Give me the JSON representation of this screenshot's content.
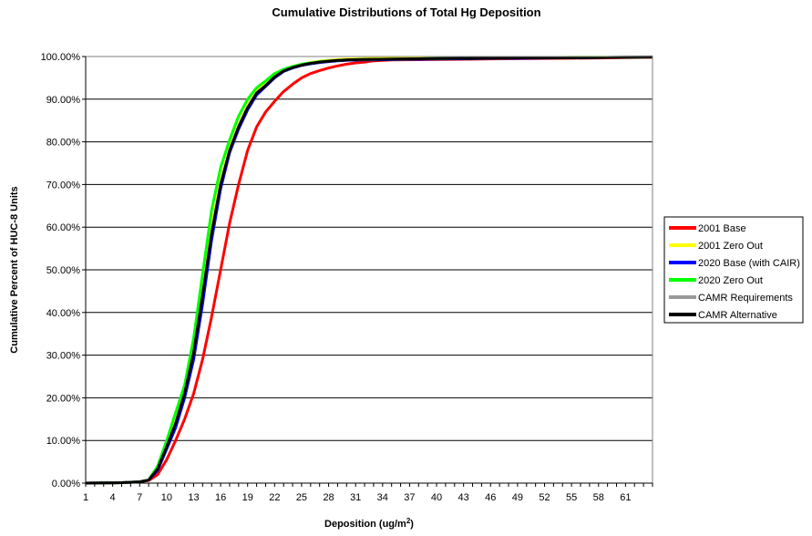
{
  "chart_data": {
    "type": "line",
    "title": "Cumulative Distributions of Total Hg Deposition",
    "xlabel_main": "Deposition (ug/m",
    "xlabel_sup": "2",
    "xlabel_end": ")",
    "ylabel": "Cumulative Percent of HUC-8 Units",
    "x_tick_labels": [
      "1",
      "4",
      "7",
      "10",
      "13",
      "16",
      "19",
      "22",
      "25",
      "28",
      "31",
      "34",
      "37",
      "40",
      "43",
      "46",
      "49",
      "52",
      "55",
      "58",
      "61"
    ],
    "x_tick_values": [
      1,
      4,
      7,
      10,
      13,
      16,
      19,
      22,
      25,
      28,
      31,
      34,
      37,
      40,
      43,
      46,
      49,
      52,
      55,
      58,
      61
    ],
    "xlim": [
      1,
      64
    ],
    "y_ticks": [
      0,
      10,
      20,
      30,
      40,
      50,
      60,
      70,
      80,
      90,
      100
    ],
    "y_tick_labels": [
      "0.00%",
      "10.00%",
      "20.00%",
      "30.00%",
      "40.00%",
      "50.00%",
      "60.00%",
      "70.00%",
      "80.00%",
      "90.00%",
      "100.00%"
    ],
    "ylim": [
      0,
      100
    ],
    "grid": "horizontal",
    "legend_position": "right",
    "series": [
      {
        "name": "2001 Base",
        "color": "#ff0000",
        "points": [
          [
            1,
            0
          ],
          [
            5,
            0.1
          ],
          [
            7,
            0.3
          ],
          [
            8,
            0.6
          ],
          [
            9,
            2
          ],
          [
            10,
            5.5
          ],
          [
            11,
            10
          ],
          [
            12,
            15
          ],
          [
            13,
            21
          ],
          [
            14,
            29
          ],
          [
            15,
            39
          ],
          [
            16,
            50
          ],
          [
            17,
            61
          ],
          [
            18,
            70
          ],
          [
            19,
            78
          ],
          [
            20,
            83.5
          ],
          [
            21,
            87
          ],
          [
            22,
            89.5
          ],
          [
            23,
            91.8
          ],
          [
            24,
            93.5
          ],
          [
            25,
            95
          ],
          [
            26,
            96
          ],
          [
            27,
            96.7
          ],
          [
            28,
            97.3
          ],
          [
            29,
            97.8
          ],
          [
            30,
            98.2
          ],
          [
            31,
            98.5
          ],
          [
            32,
            98.7
          ],
          [
            33,
            99
          ],
          [
            34,
            99.1
          ],
          [
            35,
            99.2
          ],
          [
            40,
            99.3
          ],
          [
            45,
            99.4
          ],
          [
            50,
            99.5
          ],
          [
            55,
            99.6
          ],
          [
            60,
            99.7
          ],
          [
            64,
            99.8
          ]
        ]
      },
      {
        "name": "2001 Zero Out",
        "color": "#ffff00",
        "points": [
          [
            1,
            0
          ],
          [
            5,
            0.1
          ],
          [
            7,
            0.3
          ],
          [
            8,
            0.7
          ],
          [
            9,
            3.5
          ],
          [
            10,
            9
          ],
          [
            11,
            15
          ],
          [
            12,
            22
          ],
          [
            13,
            32
          ],
          [
            14,
            46
          ],
          [
            15,
            60
          ],
          [
            16,
            71
          ],
          [
            17,
            78.5
          ],
          [
            18,
            84
          ],
          [
            19,
            88.5
          ],
          [
            20,
            91.8
          ],
          [
            21,
            93.5
          ],
          [
            22,
            95.5
          ],
          [
            23,
            96.8
          ],
          [
            24,
            97.6
          ],
          [
            25,
            98.2
          ],
          [
            26,
            98.6
          ],
          [
            27,
            98.9
          ],
          [
            28,
            99.1
          ],
          [
            29,
            99.3
          ],
          [
            30,
            99.4
          ],
          [
            32,
            99.5
          ],
          [
            36,
            99.6
          ],
          [
            40,
            99.6
          ],
          [
            45,
            99.7
          ],
          [
            50,
            99.7
          ],
          [
            55,
            99.8
          ],
          [
            60,
            99.8
          ],
          [
            64,
            99.9
          ]
        ]
      },
      {
        "name": "2020 Base (with CAIR)",
        "color": "#0000ff",
        "points": [
          [
            1,
            0
          ],
          [
            5,
            0.1
          ],
          [
            7,
            0.3
          ],
          [
            8,
            0.7
          ],
          [
            9,
            3
          ],
          [
            10,
            8
          ],
          [
            11,
            13
          ],
          [
            12,
            20
          ],
          [
            13,
            29
          ],
          [
            14,
            42
          ],
          [
            15,
            57
          ],
          [
            16,
            69
          ],
          [
            17,
            77.5
          ],
          [
            18,
            83
          ],
          [
            19,
            87.5
          ],
          [
            20,
            91
          ],
          [
            21,
            93
          ],
          [
            22,
            95
          ],
          [
            23,
            96.5
          ],
          [
            24,
            97.3
          ],
          [
            25,
            97.9
          ],
          [
            26,
            98.3
          ],
          [
            27,
            98.6
          ],
          [
            28,
            98.8
          ],
          [
            29,
            99
          ],
          [
            30,
            99.1
          ],
          [
            32,
            99.2
          ],
          [
            36,
            99.3
          ],
          [
            40,
            99.4
          ],
          [
            45,
            99.5
          ],
          [
            50,
            99.6
          ],
          [
            55,
            99.7
          ],
          [
            60,
            99.8
          ],
          [
            64,
            99.9
          ]
        ]
      },
      {
        "name": "2020 Zero Out",
        "color": "#00ff00",
        "points": [
          [
            1,
            0
          ],
          [
            5,
            0.1
          ],
          [
            7,
            0.3
          ],
          [
            8,
            0.8
          ],
          [
            9,
            4
          ],
          [
            10,
            10
          ],
          [
            11,
            16.5
          ],
          [
            12,
            23
          ],
          [
            13,
            34
          ],
          [
            14,
            49
          ],
          [
            15,
            64
          ],
          [
            16,
            74
          ],
          [
            17,
            80.5
          ],
          [
            18,
            86
          ],
          [
            19,
            90
          ],
          [
            20,
            92.7
          ],
          [
            21,
            94.3
          ],
          [
            22,
            96
          ],
          [
            23,
            97
          ],
          [
            24,
            97.7
          ],
          [
            25,
            98.2
          ],
          [
            26,
            98.5
          ],
          [
            27,
            98.8
          ],
          [
            28,
            99
          ],
          [
            29,
            99.1
          ],
          [
            30,
            99.2
          ],
          [
            32,
            99.3
          ],
          [
            36,
            99.4
          ],
          [
            40,
            99.5
          ],
          [
            45,
            99.6
          ],
          [
            50,
            99.7
          ],
          [
            55,
            99.8
          ],
          [
            60,
            99.8
          ],
          [
            64,
            99.9
          ]
        ]
      },
      {
        "name": "CAMR Requirements",
        "color": "#999999",
        "points": [
          [
            1,
            0
          ],
          [
            5,
            0.1
          ],
          [
            7,
            0.3
          ],
          [
            8,
            0.7
          ],
          [
            9,
            3.3
          ],
          [
            10,
            8.5
          ],
          [
            11,
            14
          ],
          [
            12,
            21
          ],
          [
            13,
            30.5
          ],
          [
            14,
            44
          ],
          [
            15,
            58.5
          ],
          [
            16,
            70
          ],
          [
            17,
            78
          ],
          [
            18,
            83.5
          ],
          [
            19,
            88
          ],
          [
            20,
            91.4
          ],
          [
            21,
            93.2
          ],
          [
            22,
            95.2
          ],
          [
            23,
            96.6
          ],
          [
            24,
            97.4
          ],
          [
            25,
            98
          ],
          [
            26,
            98.4
          ],
          [
            27,
            98.7
          ],
          [
            28,
            98.9
          ],
          [
            29,
            99.1
          ],
          [
            30,
            99.2
          ],
          [
            32,
            99.3
          ],
          [
            36,
            99.4
          ],
          [
            40,
            99.5
          ],
          [
            45,
            99.6
          ],
          [
            50,
            99.7
          ],
          [
            55,
            99.7
          ],
          [
            60,
            99.8
          ],
          [
            64,
            99.9
          ]
        ]
      },
      {
        "name": "CAMR Alternative",
        "color": "#000000",
        "points": [
          [
            1,
            0
          ],
          [
            5,
            0.1
          ],
          [
            7,
            0.3
          ],
          [
            8,
            0.7
          ],
          [
            9,
            3.3
          ],
          [
            10,
            8.5
          ],
          [
            11,
            14
          ],
          [
            12,
            21
          ],
          [
            13,
            30.5
          ],
          [
            14,
            44
          ],
          [
            15,
            58.5
          ],
          [
            16,
            70
          ],
          [
            17,
            78
          ],
          [
            18,
            83.5
          ],
          [
            19,
            88
          ],
          [
            20,
            91.4
          ],
          [
            21,
            93.2
          ],
          [
            22,
            95.2
          ],
          [
            23,
            96.6
          ],
          [
            24,
            97.4
          ],
          [
            25,
            98
          ],
          [
            26,
            98.4
          ],
          [
            27,
            98.7
          ],
          [
            28,
            98.9
          ],
          [
            29,
            99.1
          ],
          [
            30,
            99.2
          ],
          [
            32,
            99.3
          ],
          [
            36,
            99.4
          ],
          [
            40,
            99.5
          ],
          [
            45,
            99.6
          ],
          [
            50,
            99.7
          ],
          [
            55,
            99.7
          ],
          [
            60,
            99.8
          ],
          [
            64,
            99.9
          ]
        ]
      }
    ]
  }
}
